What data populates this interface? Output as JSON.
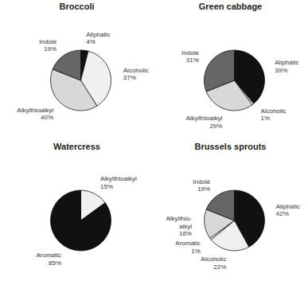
{
  "chart_data": [
    {
      "type": "pie",
      "title": "Broccoli",
      "categories": [
        "Aliphatic",
        "Alcoholic",
        "Alkylthioalkyl",
        "Indole"
      ],
      "values": [
        4,
        37,
        40,
        19
      ],
      "value_labels": [
        "4%",
        "37%",
        "40%",
        "19%"
      ],
      "colors": [
        "#111111",
        "#f0f0f0",
        "#d8d8d8",
        "#666666"
      ],
      "data_labels": true
    },
    {
      "type": "pie",
      "title": "Green cabbage",
      "categories": [
        "Aliphatic",
        "Alcoholic",
        "Alkylthioalkyl",
        "Indole"
      ],
      "values": [
        39,
        1,
        29,
        31
      ],
      "value_labels": [
        "39%",
        "1%",
        "29%",
        "31%"
      ],
      "colors": [
        "#111111",
        "#f0f0f0",
        "#d8d8d8",
        "#666666"
      ],
      "data_labels": true
    },
    {
      "type": "pie",
      "title": "Watercress",
      "categories": [
        "Alkylthioalkyl",
        "Aromatic"
      ],
      "values": [
        15,
        85
      ],
      "value_labels": [
        "15%",
        "85%"
      ],
      "colors": [
        "#f0f0f0",
        "#111111"
      ],
      "data_labels": true
    },
    {
      "type": "pie",
      "title": "Brussels sprouts",
      "categories": [
        "Aliphatic",
        "Alcoholic",
        "Aromatic",
        "Alkylthio-\nalkyl",
        "Indole"
      ],
      "values": [
        42,
        22,
        1,
        16,
        19
      ],
      "value_labels": [
        "42%",
        "22%",
        "1%",
        "16%",
        "19%"
      ],
      "colors": [
        "#111111",
        "#f0f0f0",
        "#ffffff",
        "#d8d8d8",
        "#666666"
      ],
      "data_labels": true
    }
  ]
}
